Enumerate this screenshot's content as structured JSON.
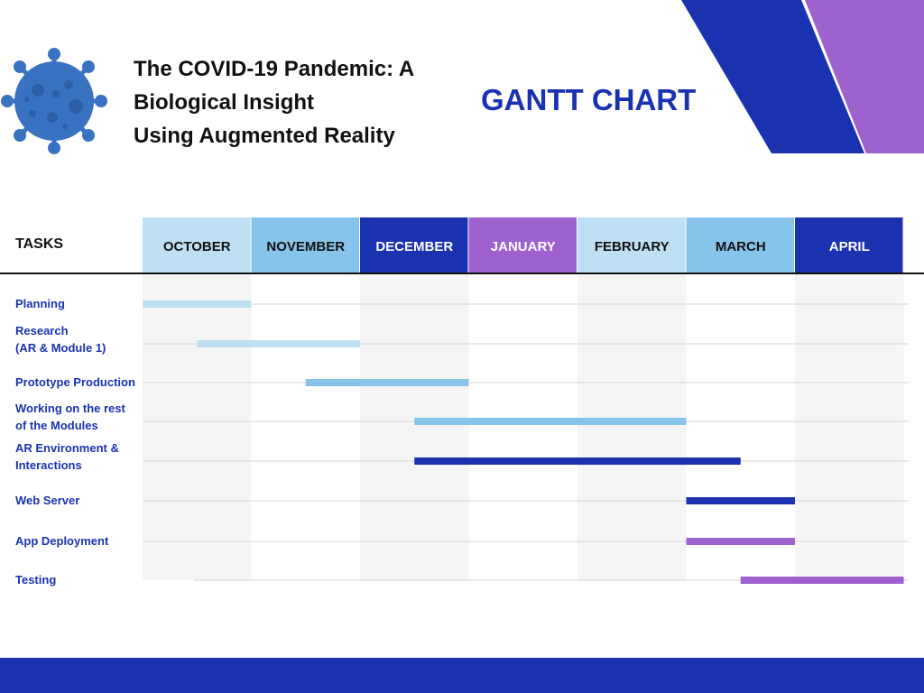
{
  "header": {
    "title_lines": [
      "The COVID-19 Pandemic: A",
      "Biological Insight",
      "Using Augmented Reality"
    ],
    "chart_title": "GANTT CHART"
  },
  "icons": {
    "logo": "virus-icon"
  },
  "colors": {
    "primary_blue": "#1b32b0",
    "purple": "#9e62cf",
    "light_blue": "#bde0f4",
    "mid_blue": "#87c4ea",
    "grid_shade": "#f5f5f5"
  },
  "chart_data": {
    "type": "gantt",
    "title": "GANTT CHART",
    "task_header": "TASKS",
    "months": [
      {
        "label": "OCTOBER",
        "color": "#bde0f4",
        "text_color": "#111111"
      },
      {
        "label": "NOVEMBER",
        "color": "#87c4ea",
        "text_color": "#111111"
      },
      {
        "label": "DECEMBER",
        "color": "#1b32b0",
        "text_color": "#ffffff"
      },
      {
        "label": "JANUARY",
        "color": "#9e62cf",
        "text_color": "#ffffff"
      },
      {
        "label": "FEBRUARY",
        "color": "#bde0f4",
        "text_color": "#111111"
      },
      {
        "label": "MARCH",
        "color": "#87c4ea",
        "text_color": "#111111"
      },
      {
        "label": "APRIL",
        "color": "#1b32b0",
        "text_color": "#ffffff"
      }
    ],
    "tasks": [
      {
        "label_lines": [
          "Planning"
        ],
        "start": 0,
        "end": 1,
        "color": "#bde0f4"
      },
      {
        "label_lines": [
          "Research",
          "(AR & Module 1)"
        ],
        "start": 0.5,
        "end": 2,
        "color": "#bde0f4"
      },
      {
        "label_lines": [
          "Prototype Production"
        ],
        "start": 1.5,
        "end": 3,
        "color": "#87c4ea"
      },
      {
        "label_lines": [
          "Working on the rest",
          "of the Modules"
        ],
        "start": 2.5,
        "end": 5,
        "color": "#87c4ea"
      },
      {
        "label_lines": [
          "AR Environment &",
          "Interactions"
        ],
        "start": 2.5,
        "end": 5.5,
        "color": "#1b32b0"
      },
      {
        "label_lines": [
          "Web Server"
        ],
        "start": 5,
        "end": 6,
        "color": "#1b32b0"
      },
      {
        "label_lines": [
          "App Deployment"
        ],
        "start": 5,
        "end": 6,
        "color": "#9e62cf"
      },
      {
        "label_lines": [
          "Testing"
        ],
        "start": 5.5,
        "end": 7,
        "color": "#9e62cf"
      }
    ],
    "grid": true
  }
}
